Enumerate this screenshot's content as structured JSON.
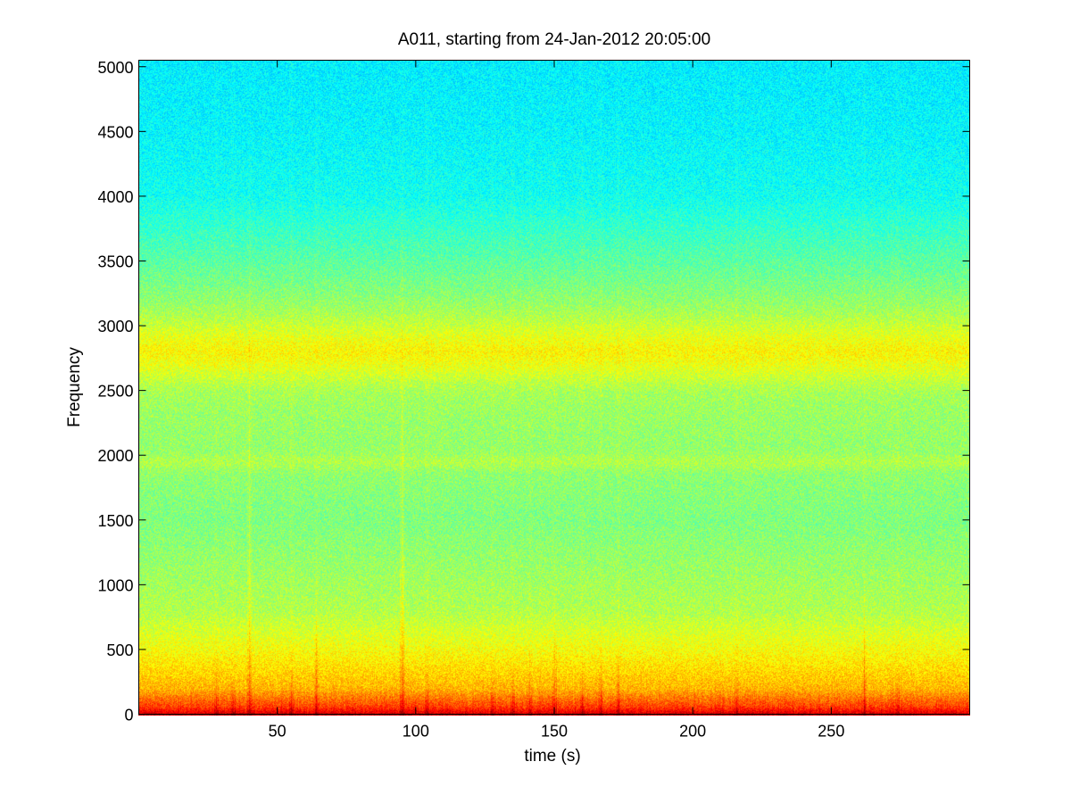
{
  "chart_data": {
    "type": "heatmap",
    "subtype": "spectrogram",
    "title": "A011, starting from 24-Jan-2012 20:05:00",
    "xlabel": "time (s)",
    "ylabel": "Frequency",
    "xlim": [
      0,
      300
    ],
    "ylim": [
      0,
      5050
    ],
    "x_ticks": [
      50,
      100,
      150,
      200,
      250
    ],
    "y_ticks": [
      0,
      500,
      1000,
      1500,
      2000,
      2500,
      3000,
      3500,
      4000,
      4500,
      5000
    ],
    "colormap": "jet",
    "frequency_profile": [
      {
        "frequency": 0,
        "level": 0.93
      },
      {
        "frequency": 60,
        "level": 0.82
      },
      {
        "frequency": 200,
        "level": 0.7
      },
      {
        "frequency": 500,
        "level": 0.62
      },
      {
        "frequency": 800,
        "level": 0.55
      },
      {
        "frequency": 1500,
        "level": 0.5
      },
      {
        "frequency": 2000,
        "level": 0.52
      },
      {
        "frequency": 2500,
        "level": 0.53
      },
      {
        "frequency": 2800,
        "level": 0.58
      },
      {
        "frequency": 3100,
        "level": 0.53
      },
      {
        "frequency": 3600,
        "level": 0.45
      },
      {
        "frequency": 4000,
        "level": 0.39
      },
      {
        "frequency": 4500,
        "level": 0.37
      },
      {
        "frequency": 5050,
        "level": 0.36
      }
    ],
    "bands": [
      {
        "frequency": 2800,
        "width": 250,
        "boost": 0.05
      },
      {
        "frequency": 1950,
        "width": 60,
        "boost": 0.03
      }
    ],
    "transients": [
      {
        "time": 28,
        "top_frequency": 350
      },
      {
        "time": 34,
        "top_frequency": 300
      },
      {
        "time": 40,
        "top_frequency": 5050
      },
      {
        "time": 55,
        "top_frequency": 400
      },
      {
        "time": 64,
        "top_frequency": 1500
      },
      {
        "time": 95,
        "top_frequency": 5050
      },
      {
        "time": 104,
        "top_frequency": 350
      },
      {
        "time": 128,
        "top_frequency": 500
      },
      {
        "time": 135,
        "top_frequency": 450
      },
      {
        "time": 141,
        "top_frequency": 600
      },
      {
        "time": 150,
        "top_frequency": 1400
      },
      {
        "time": 160,
        "top_frequency": 450
      },
      {
        "time": 167,
        "top_frequency": 700
      },
      {
        "time": 173,
        "top_frequency": 600
      },
      {
        "time": 216,
        "top_frequency": 300
      },
      {
        "time": 262,
        "top_frequency": 1400
      },
      {
        "time": 274,
        "top_frequency": 300
      }
    ],
    "grid": false
  }
}
